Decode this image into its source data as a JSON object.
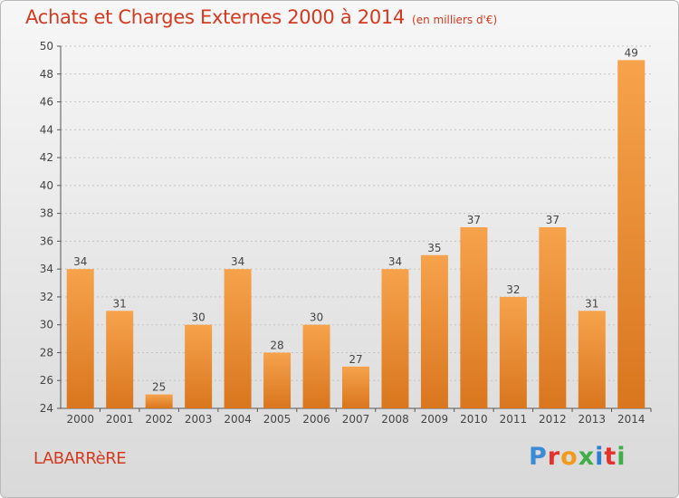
{
  "title": "Achats et Charges Externes 2000 à 2014",
  "subtitle": "(en milliers d'€)",
  "commune": "LABARRèRE",
  "brand": {
    "letters": [
      "P",
      "r",
      "o",
      "x",
      "i",
      "t",
      "i"
    ],
    "colors": [
      "#3a8ad6",
      "#e3322b",
      "#f29a1b",
      "#3fae49",
      "#2e7fd0",
      "#e3322b",
      "#3fae49"
    ]
  },
  "colors": {
    "bar_top": "#f6a34c",
    "bar_bottom": "#d9761e",
    "title": "#d33a1f"
  },
  "chart_data": {
    "type": "bar",
    "categories": [
      "2000",
      "2001",
      "2002",
      "2003",
      "2004",
      "2005",
      "2006",
      "2007",
      "2008",
      "2009",
      "2010",
      "2011",
      "2012",
      "2013",
      "2014"
    ],
    "values": [
      34,
      31,
      25,
      30,
      34,
      28,
      30,
      27,
      34,
      35,
      37,
      32,
      37,
      31,
      49
    ],
    "ylim": [
      24,
      50
    ],
    "yticks": [
      24,
      26,
      28,
      30,
      32,
      34,
      36,
      38,
      40,
      42,
      44,
      46,
      48,
      50
    ],
    "grid": true
  }
}
